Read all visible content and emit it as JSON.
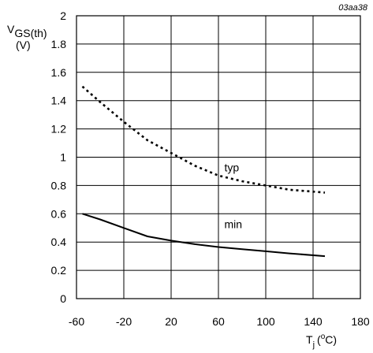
{
  "figure_id": "03aa38",
  "chart_data": {
    "type": "line",
    "ylabel": {
      "main": "V",
      "sub": "GS(th)",
      "unit": "(V)"
    },
    "xlabel": {
      "main": "T",
      "sub": "j",
      "unit_open": "(",
      "unit_sup": "o",
      "unit_close": "C)"
    },
    "xlim": [
      -60,
      180
    ],
    "ylim": [
      0,
      2
    ],
    "x_ticks": [
      -60,
      -20,
      20,
      60,
      100,
      140,
      180
    ],
    "x_tick_labels": [
      "-60",
      "-20",
      "20",
      "60",
      "100",
      "140",
      "180"
    ],
    "y_ticks": [
      0,
      0.2,
      0.4,
      0.6,
      0.8,
      1,
      1.2,
      1.4,
      1.6,
      1.8,
      2
    ],
    "y_tick_labels": [
      "0",
      "0.2",
      "0.4",
      "0.6",
      "0.8",
      "1",
      "1.2",
      "1.4",
      "1.6",
      "1.8",
      "2"
    ],
    "grid": true,
    "series": [
      {
        "name": "typ",
        "style": "dotted",
        "color": "#000000",
        "label_pos": [
          65,
          0.9
        ],
        "points": [
          [
            -55,
            1.5
          ],
          [
            -40,
            1.39
          ],
          [
            -20,
            1.25
          ],
          [
            0,
            1.12
          ],
          [
            20,
            1.03
          ],
          [
            40,
            0.94
          ],
          [
            60,
            0.87
          ],
          [
            80,
            0.83
          ],
          [
            100,
            0.8
          ],
          [
            120,
            0.77
          ],
          [
            150,
            0.75
          ]
        ]
      },
      {
        "name": "min",
        "style": "solid",
        "color": "#000000",
        "label_pos": [
          65,
          0.5
        ],
        "points": [
          [
            -55,
            0.6
          ],
          [
            -40,
            0.56
          ],
          [
            -20,
            0.5
          ],
          [
            0,
            0.44
          ],
          [
            20,
            0.41
          ],
          [
            40,
            0.385
          ],
          [
            60,
            0.365
          ],
          [
            80,
            0.35
          ],
          [
            100,
            0.335
          ],
          [
            120,
            0.32
          ],
          [
            150,
            0.3
          ]
        ]
      }
    ]
  }
}
